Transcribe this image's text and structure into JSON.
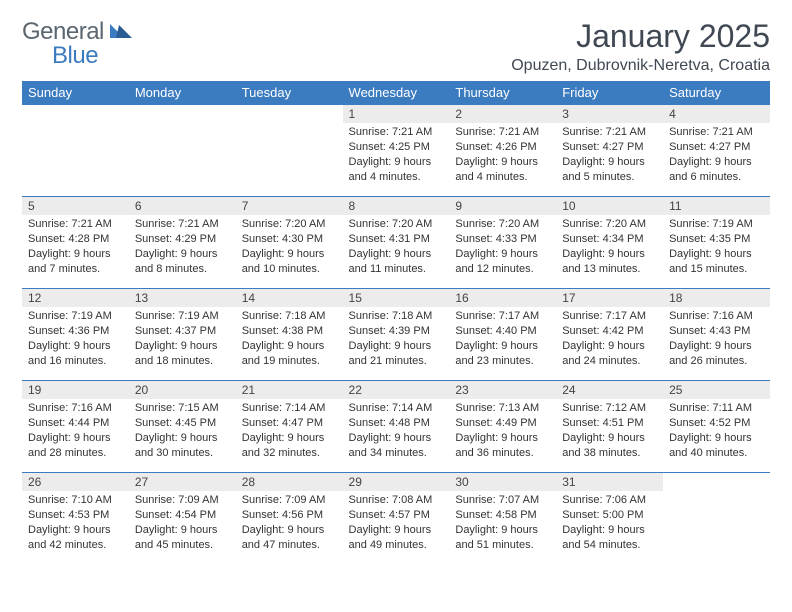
{
  "brand": {
    "part1": "General",
    "part2": "Blue"
  },
  "title": "January 2025",
  "location": "Opuzen, Dubrovnik-Neretva, Croatia",
  "colors": {
    "header_bg": "#3b7bbf",
    "header_text": "#ffffff",
    "daynum_bg": "#ececec",
    "row_divider": "#3b7bbf",
    "body_text": "#333333",
    "title_text": "#404953",
    "logo_gray": "#5a6670",
    "logo_blue": "#3b7bbf",
    "page_bg": "#ffffff"
  },
  "typography": {
    "month_title_fontsize": 32,
    "location_fontsize": 16,
    "weekday_fontsize": 13,
    "daynum_fontsize": 12,
    "detail_fontsize": 11
  },
  "weekdays": [
    "Sunday",
    "Monday",
    "Tuesday",
    "Wednesday",
    "Thursday",
    "Friday",
    "Saturday"
  ],
  "weeks": [
    [
      null,
      null,
      null,
      {
        "d": "1",
        "sunrise": "7:21 AM",
        "sunset": "4:25 PM",
        "day_h": 9,
        "day_m": 4
      },
      {
        "d": "2",
        "sunrise": "7:21 AM",
        "sunset": "4:26 PM",
        "day_h": 9,
        "day_m": 4
      },
      {
        "d": "3",
        "sunrise": "7:21 AM",
        "sunset": "4:27 PM",
        "day_h": 9,
        "day_m": 5
      },
      {
        "d": "4",
        "sunrise": "7:21 AM",
        "sunset": "4:27 PM",
        "day_h": 9,
        "day_m": 6
      }
    ],
    [
      {
        "d": "5",
        "sunrise": "7:21 AM",
        "sunset": "4:28 PM",
        "day_h": 9,
        "day_m": 7
      },
      {
        "d": "6",
        "sunrise": "7:21 AM",
        "sunset": "4:29 PM",
        "day_h": 9,
        "day_m": 8
      },
      {
        "d": "7",
        "sunrise": "7:20 AM",
        "sunset": "4:30 PM",
        "day_h": 9,
        "day_m": 10
      },
      {
        "d": "8",
        "sunrise": "7:20 AM",
        "sunset": "4:31 PM",
        "day_h": 9,
        "day_m": 11
      },
      {
        "d": "9",
        "sunrise": "7:20 AM",
        "sunset": "4:33 PM",
        "day_h": 9,
        "day_m": 12
      },
      {
        "d": "10",
        "sunrise": "7:20 AM",
        "sunset": "4:34 PM",
        "day_h": 9,
        "day_m": 13
      },
      {
        "d": "11",
        "sunrise": "7:19 AM",
        "sunset": "4:35 PM",
        "day_h": 9,
        "day_m": 15
      }
    ],
    [
      {
        "d": "12",
        "sunrise": "7:19 AM",
        "sunset": "4:36 PM",
        "day_h": 9,
        "day_m": 16
      },
      {
        "d": "13",
        "sunrise": "7:19 AM",
        "sunset": "4:37 PM",
        "day_h": 9,
        "day_m": 18
      },
      {
        "d": "14",
        "sunrise": "7:18 AM",
        "sunset": "4:38 PM",
        "day_h": 9,
        "day_m": 19
      },
      {
        "d": "15",
        "sunrise": "7:18 AM",
        "sunset": "4:39 PM",
        "day_h": 9,
        "day_m": 21
      },
      {
        "d": "16",
        "sunrise": "7:17 AM",
        "sunset": "4:40 PM",
        "day_h": 9,
        "day_m": 23
      },
      {
        "d": "17",
        "sunrise": "7:17 AM",
        "sunset": "4:42 PM",
        "day_h": 9,
        "day_m": 24
      },
      {
        "d": "18",
        "sunrise": "7:16 AM",
        "sunset": "4:43 PM",
        "day_h": 9,
        "day_m": 26
      }
    ],
    [
      {
        "d": "19",
        "sunrise": "7:16 AM",
        "sunset": "4:44 PM",
        "day_h": 9,
        "day_m": 28
      },
      {
        "d": "20",
        "sunrise": "7:15 AM",
        "sunset": "4:45 PM",
        "day_h": 9,
        "day_m": 30
      },
      {
        "d": "21",
        "sunrise": "7:14 AM",
        "sunset": "4:47 PM",
        "day_h": 9,
        "day_m": 32
      },
      {
        "d": "22",
        "sunrise": "7:14 AM",
        "sunset": "4:48 PM",
        "day_h": 9,
        "day_m": 34
      },
      {
        "d": "23",
        "sunrise": "7:13 AM",
        "sunset": "4:49 PM",
        "day_h": 9,
        "day_m": 36
      },
      {
        "d": "24",
        "sunrise": "7:12 AM",
        "sunset": "4:51 PM",
        "day_h": 9,
        "day_m": 38
      },
      {
        "d": "25",
        "sunrise": "7:11 AM",
        "sunset": "4:52 PM",
        "day_h": 9,
        "day_m": 40
      }
    ],
    [
      {
        "d": "26",
        "sunrise": "7:10 AM",
        "sunset": "4:53 PM",
        "day_h": 9,
        "day_m": 42
      },
      {
        "d": "27",
        "sunrise": "7:09 AM",
        "sunset": "4:54 PM",
        "day_h": 9,
        "day_m": 45
      },
      {
        "d": "28",
        "sunrise": "7:09 AM",
        "sunset": "4:56 PM",
        "day_h": 9,
        "day_m": 47
      },
      {
        "d": "29",
        "sunrise": "7:08 AM",
        "sunset": "4:57 PM",
        "day_h": 9,
        "day_m": 49
      },
      {
        "d": "30",
        "sunrise": "7:07 AM",
        "sunset": "4:58 PM",
        "day_h": 9,
        "day_m": 51
      },
      {
        "d": "31",
        "sunrise": "7:06 AM",
        "sunset": "5:00 PM",
        "day_h": 9,
        "day_m": 54
      },
      null
    ]
  ]
}
